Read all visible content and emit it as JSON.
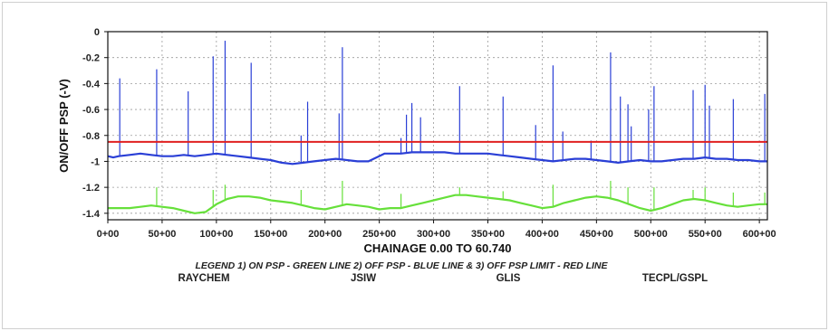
{
  "chart_data": {
    "type": "line",
    "xlabel": "CHAINAGE 0.00 TO 60.740",
    "ylabel": "ON/OFF PSP (-V)",
    "xlim": [
      0,
      60.74
    ],
    "ylim": [
      -1.45,
      0
    ],
    "x_ticks": [
      0,
      5,
      10,
      15,
      20,
      25,
      30,
      35,
      40,
      45,
      50,
      55,
      60
    ],
    "x_tick_labels": [
      "0+00",
      "50+00",
      "100+00",
      "150+00",
      "200+00",
      "250+00",
      "300+00",
      "350+00",
      "400+00",
      "450+00",
      "500+00",
      "550+00",
      "600+00"
    ],
    "y_ticks": [
      0,
      -0.2,
      -0.4,
      -0.6,
      -0.8,
      -1,
      -1.2,
      -1.4
    ],
    "y_tick_labels": [
      "0",
      "-0.2",
      "-0.4",
      "-0.6",
      "-0.8",
      "-1",
      "-1.2",
      "-1.4"
    ],
    "grid": true,
    "legend_text": "LEGEND 1) ON PSP - GREEN LINE 2) OFF PSP - BLUE LINE & 3) OFF PSP LIMIT - RED LINE",
    "vendors": [
      "RAYCHEM",
      "JSIW",
      "GLIS",
      "TECPL/GSPL"
    ],
    "limit": {
      "value": -0.85,
      "color": "#e02020"
    },
    "series": [
      {
        "color": "#2a3fd6",
        "points": [
          [
            0,
            -0.96
          ],
          [
            0.5,
            -0.97
          ],
          [
            1,
            -0.96
          ],
          [
            2,
            -0.95
          ],
          [
            3,
            -0.94
          ],
          [
            4,
            -0.95
          ],
          [
            5,
            -0.96
          ],
          [
            6,
            -0.96
          ],
          [
            7,
            -0.95
          ],
          [
            8,
            -0.96
          ],
          [
            9,
            -0.95
          ],
          [
            10,
            -0.94
          ],
          [
            11,
            -0.95
          ],
          [
            12,
            -0.96
          ],
          [
            13,
            -0.97
          ],
          [
            14,
            -0.98
          ],
          [
            15,
            -0.99
          ],
          [
            16,
            -1.01
          ],
          [
            17,
            -1.02
          ],
          [
            18,
            -1.01
          ],
          [
            19,
            -1.0
          ],
          [
            20,
            -0.99
          ],
          [
            21,
            -0.98
          ],
          [
            22,
            -0.99
          ],
          [
            23,
            -1.0
          ],
          [
            24,
            -1.0
          ],
          [
            25.5,
            -0.94
          ],
          [
            26,
            -0.94
          ],
          [
            27,
            -0.94
          ],
          [
            28,
            -0.93
          ],
          [
            29,
            -0.93
          ],
          [
            30,
            -0.93
          ],
          [
            31,
            -0.93
          ],
          [
            32,
            -0.94
          ],
          [
            33,
            -0.94
          ],
          [
            34,
            -0.94
          ],
          [
            35,
            -0.94
          ],
          [
            36,
            -0.95
          ],
          [
            37,
            -0.96
          ],
          [
            38,
            -0.97
          ],
          [
            39,
            -0.98
          ],
          [
            40,
            -0.99
          ],
          [
            41,
            -1.0
          ],
          [
            42,
            -0.99
          ],
          [
            43,
            -0.98
          ],
          [
            44,
            -0.98
          ],
          [
            45,
            -0.99
          ],
          [
            46,
            -1.0
          ],
          [
            47,
            -1.01
          ],
          [
            48,
            -1.0
          ],
          [
            49,
            -0.99
          ],
          [
            50,
            -1.0
          ],
          [
            51,
            -1.0
          ],
          [
            52,
            -0.99
          ],
          [
            53,
            -0.98
          ],
          [
            54,
            -0.98
          ],
          [
            55,
            -0.97
          ],
          [
            56,
            -0.98
          ],
          [
            57,
            -0.98
          ],
          [
            58,
            -0.99
          ],
          [
            59,
            -0.99
          ],
          [
            60,
            -1.0
          ],
          [
            60.74,
            -1.0
          ]
        ],
        "spikes": [
          [
            1.1,
            -0.36
          ],
          [
            4.5,
            -0.29
          ],
          [
            7.4,
            -0.46
          ],
          [
            9.7,
            -0.19
          ],
          [
            10.8,
            -0.07
          ],
          [
            13.2,
            -0.24
          ],
          [
            17.8,
            -0.8
          ],
          [
            18.4,
            -0.54
          ],
          [
            21.3,
            -0.63
          ],
          [
            21.6,
            -0.12
          ],
          [
            27.0,
            -0.82
          ],
          [
            27.5,
            -0.64
          ],
          [
            28.0,
            -0.55
          ],
          [
            28.8,
            -0.66
          ],
          [
            32.4,
            -0.42
          ],
          [
            36.4,
            -0.5
          ],
          [
            39.4,
            -0.72
          ],
          [
            41.0,
            -0.26
          ],
          [
            41.9,
            -0.77
          ],
          [
            44.5,
            -0.84
          ],
          [
            46.3,
            -0.16
          ],
          [
            47.2,
            -0.5
          ],
          [
            47.9,
            -0.56
          ],
          [
            48.2,
            -0.73
          ],
          [
            49.8,
            -0.6
          ],
          [
            50.3,
            -0.42
          ],
          [
            53.9,
            -0.45
          ],
          [
            55.0,
            -0.41
          ],
          [
            55.4,
            -0.57
          ],
          [
            57.6,
            -0.52
          ],
          [
            60.5,
            -0.48
          ]
        ]
      },
      {
        "color": "#66e03a",
        "points": [
          [
            0,
            -1.36
          ],
          [
            1,
            -1.36
          ],
          [
            2,
            -1.36
          ],
          [
            3,
            -1.35
          ],
          [
            4,
            -1.34
          ],
          [
            5,
            -1.35
          ],
          [
            6,
            -1.36
          ],
          [
            7,
            -1.38
          ],
          [
            8,
            -1.4
          ],
          [
            9,
            -1.39
          ],
          [
            10,
            -1.33
          ],
          [
            11,
            -1.29
          ],
          [
            12,
            -1.27
          ],
          [
            13,
            -1.27
          ],
          [
            14,
            -1.28
          ],
          [
            15,
            -1.3
          ],
          [
            16,
            -1.31
          ],
          [
            17,
            -1.32
          ],
          [
            18,
            -1.34
          ],
          [
            19,
            -1.36
          ],
          [
            20,
            -1.37
          ],
          [
            21,
            -1.35
          ],
          [
            22,
            -1.33
          ],
          [
            23,
            -1.34
          ],
          [
            24,
            -1.35
          ],
          [
            25,
            -1.37
          ],
          [
            26,
            -1.36
          ],
          [
            27,
            -1.36
          ],
          [
            28,
            -1.34
          ],
          [
            29,
            -1.32
          ],
          [
            30,
            -1.3
          ],
          [
            31,
            -1.28
          ],
          [
            32,
            -1.26
          ],
          [
            33,
            -1.26
          ],
          [
            34,
            -1.27
          ],
          [
            35,
            -1.28
          ],
          [
            36,
            -1.29
          ],
          [
            37,
            -1.3
          ],
          [
            38,
            -1.32
          ],
          [
            39,
            -1.34
          ],
          [
            40,
            -1.36
          ],
          [
            41,
            -1.35
          ],
          [
            42,
            -1.32
          ],
          [
            43,
            -1.3
          ],
          [
            44,
            -1.28
          ],
          [
            45,
            -1.27
          ],
          [
            46,
            -1.28
          ],
          [
            47,
            -1.3
          ],
          [
            48,
            -1.33
          ],
          [
            49,
            -1.36
          ],
          [
            50,
            -1.38
          ],
          [
            51,
            -1.36
          ],
          [
            52,
            -1.33
          ],
          [
            53,
            -1.3
          ],
          [
            54,
            -1.29
          ],
          [
            55,
            -1.3
          ],
          [
            56,
            -1.32
          ],
          [
            57,
            -1.34
          ],
          [
            58,
            -1.35
          ],
          [
            59,
            -1.34
          ],
          [
            60,
            -1.33
          ],
          [
            60.74,
            -1.33
          ]
        ],
        "spikes": [
          [
            4.5,
            -1.2
          ],
          [
            9.7,
            -1.22
          ],
          [
            10.8,
            -1.18
          ],
          [
            17.8,
            -1.22
          ],
          [
            21.6,
            -1.15
          ],
          [
            27.0,
            -1.25
          ],
          [
            32.4,
            -1.2
          ],
          [
            36.4,
            -1.23
          ],
          [
            41.0,
            -1.18
          ],
          [
            46.3,
            -1.15
          ],
          [
            47.9,
            -1.2
          ],
          [
            50.3,
            -1.2
          ],
          [
            53.9,
            -1.22
          ],
          [
            55.0,
            -1.2
          ],
          [
            57.6,
            -1.24
          ],
          [
            60.5,
            -1.24
          ]
        ]
      }
    ]
  }
}
